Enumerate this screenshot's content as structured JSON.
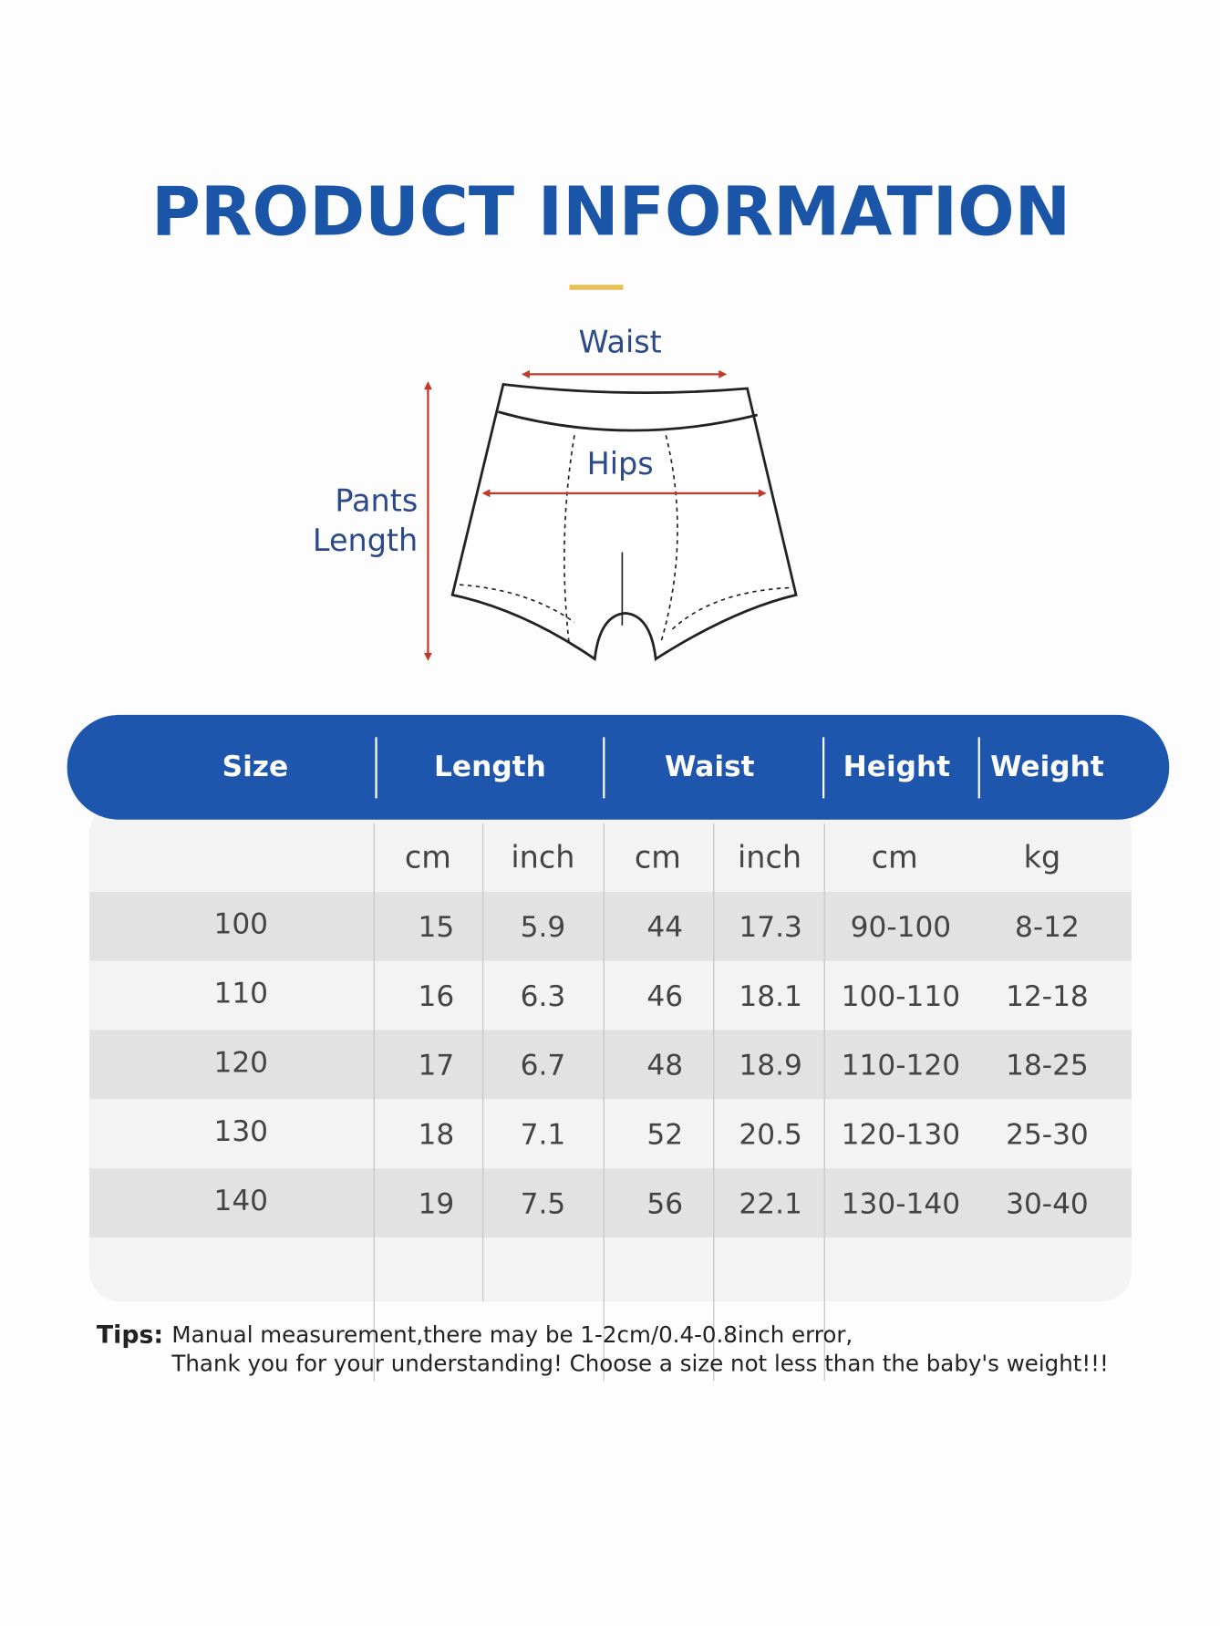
{
  "header": {
    "title": "PRODUCT INFORMATION"
  },
  "diagram": {
    "waist": "Waist",
    "hips": "Hips",
    "pants_length": [
      "Pants",
      "Length"
    ]
  },
  "table": {
    "headers": [
      "Size",
      "Length",
      "Waist",
      "Height",
      "Weight"
    ],
    "units": [
      "cm",
      "inch",
      "cm",
      "inch",
      "cm",
      "kg"
    ],
    "rows": [
      [
        "100",
        "15",
        "5.9",
        "44",
        "17.3",
        "90-100",
        "8-12"
      ],
      [
        "110",
        "16",
        "6.3",
        "46",
        "18.1",
        "100-110",
        "12-18"
      ],
      [
        "120",
        "17",
        "6.7",
        "48",
        "18.9",
        "110-120",
        "18-25"
      ],
      [
        "130",
        "18",
        "7.1",
        "52",
        "20.5",
        "120-130",
        "25-30"
      ],
      [
        "140",
        "19",
        "7.5",
        "56",
        "22.1",
        "130-140",
        "30-40"
      ]
    ]
  },
  "tips": {
    "label": "Tips:",
    "lines": [
      "Manual measurement,there may be 1-2cm/0.4-0.8inch error,",
      "Thank you for your understanding! Choose a size not less than the baby's weight!!!"
    ]
  }
}
